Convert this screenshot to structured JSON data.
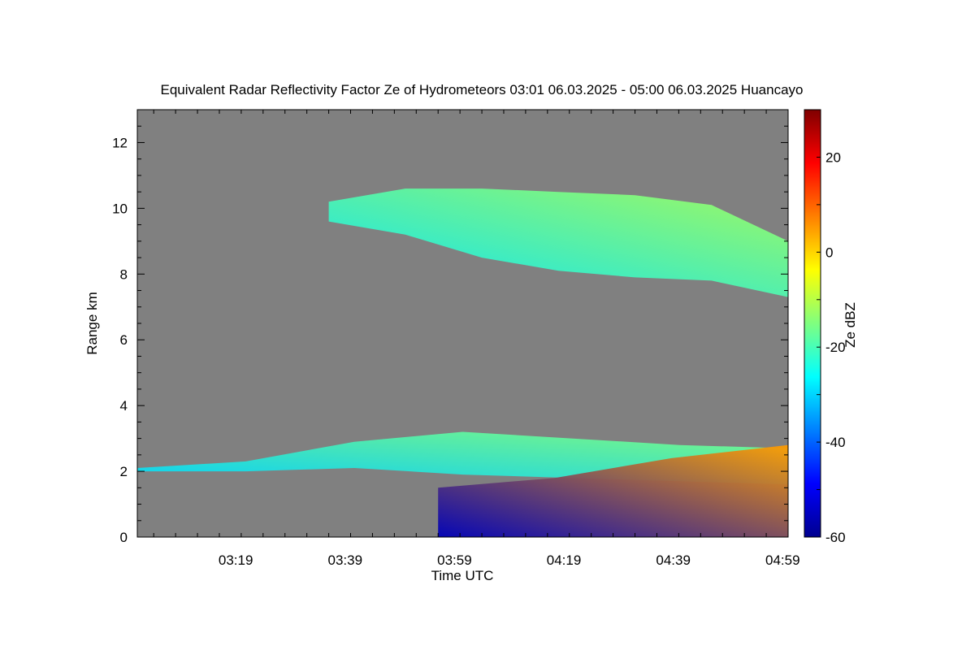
{
  "chart_data": {
    "type": "heatmap",
    "title": "Equivalent Radar Reflectivity Factor Ze of Hydrometeors   03:01 06.03.2025 - 05:00 06.03.2025 Huancayo",
    "xlabel": "Time UTC",
    "ylabel": "Range km",
    "colorbar_label": "Ze dBZ",
    "background_color": "#808080",
    "x_range_min": [
      181,
      300
    ],
    "y_range_km": [
      0,
      13
    ],
    "zlim_dbz": [
      -60,
      30
    ],
    "x_ticks": [
      {
        "minute": 199,
        "label": "03:19"
      },
      {
        "minute": 219,
        "label": "03:39"
      },
      {
        "minute": 239,
        "label": "03:59"
      },
      {
        "minute": 259,
        "label": "04:19"
      },
      {
        "minute": 279,
        "label": "04:39"
      },
      {
        "minute": 299,
        "label": "04:59"
      }
    ],
    "y_ticks": [
      {
        "value": 0,
        "label": "0"
      },
      {
        "value": 2,
        "label": "2"
      },
      {
        "value": 4,
        "label": "4"
      },
      {
        "value": 6,
        "label": "6"
      },
      {
        "value": 8,
        "label": "8"
      },
      {
        "value": 10,
        "label": "10"
      },
      {
        "value": 12,
        "label": "12"
      }
    ],
    "colorbar_ticks": [
      {
        "value": 20,
        "label": "20"
      },
      {
        "value": 0,
        "label": "0"
      },
      {
        "value": -20,
        "label": "-20"
      },
      {
        "value": -40,
        "label": "-40"
      },
      {
        "value": -60,
        "label": "-60"
      }
    ],
    "colorscale": "jet",
    "echo_layers": [
      {
        "name": "upper-cloud-layer",
        "t_start": 216,
        "t_end": 300,
        "base_km": [
          9.6,
          9.2,
          8.5,
          8.1,
          7.9,
          7.8,
          7.3
        ],
        "top_km": [
          10.2,
          10.6,
          10.6,
          10.5,
          10.4,
          10.1,
          9.0
        ],
        "dbz_range": [
          -28,
          -12
        ]
      },
      {
        "name": "lower-cloud-layer",
        "t_start": 181,
        "t_end": 300,
        "base_km": [
          2.0,
          2.0,
          2.1,
          1.9,
          1.8,
          1.7,
          1.6
        ],
        "top_km": [
          2.1,
          2.3,
          2.9,
          3.2,
          3.0,
          2.8,
          2.7
        ],
        "dbz_range": [
          -30,
          -15
        ]
      },
      {
        "name": "precipitation-below-cloud",
        "t_start": 236,
        "t_end": 300,
        "base_km": [
          0.0,
          0.0,
          0.0,
          0.0
        ],
        "top_km": [
          1.5,
          1.8,
          2.4,
          2.8
        ],
        "dbz_range": [
          -55,
          5
        ]
      }
    ]
  }
}
